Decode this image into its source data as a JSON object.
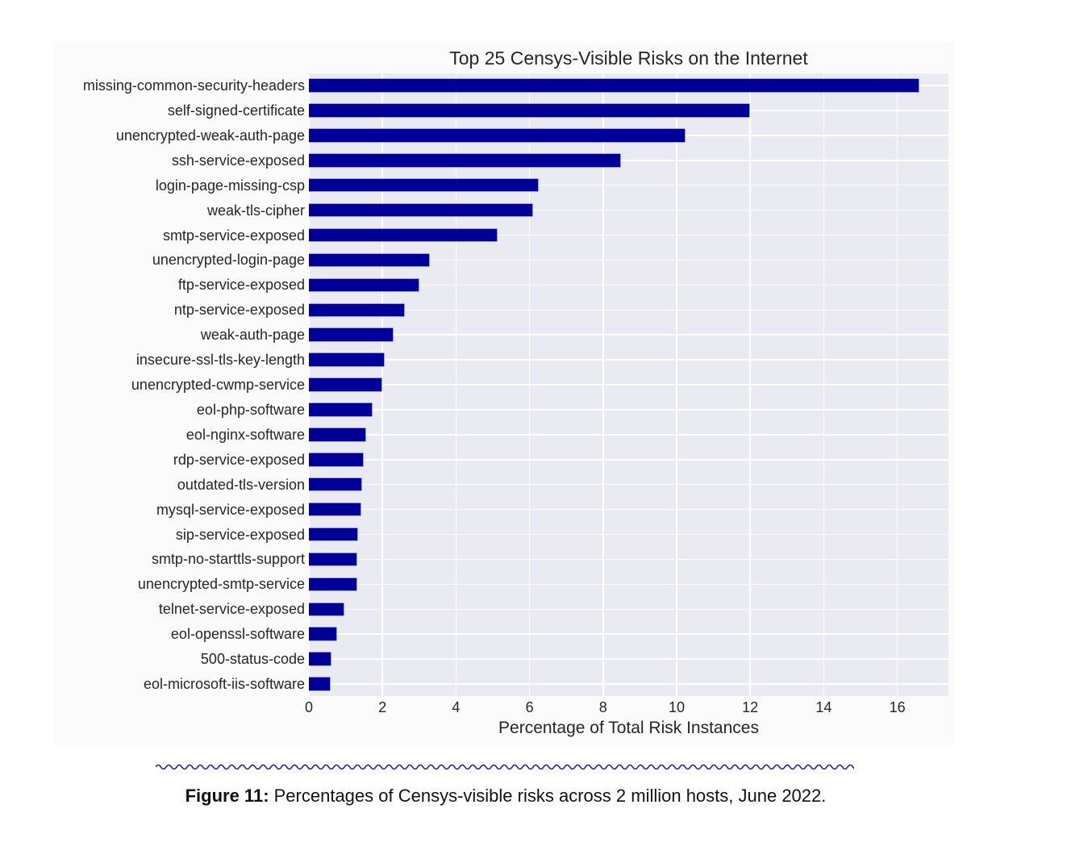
{
  "chart_data": {
    "type": "bar",
    "orientation": "horizontal",
    "title": "Top 25 Censys-Visible Risks on the Internet",
    "xlabel": "Percentage of Total Risk Instances",
    "ylabel": "",
    "xlim": [
      0,
      17.4
    ],
    "xticks": [
      0,
      2,
      4,
      6,
      8,
      10,
      12,
      14,
      16
    ],
    "grid": true,
    "legend": null,
    "bar_color": "#000099",
    "background_color": "#eaeaf2",
    "categories": [
      "missing-common-security-headers",
      "self-signed-certificate",
      "unencrypted-weak-auth-page",
      "ssh-service-exposed",
      "login-page-missing-csp",
      "weak-tls-cipher",
      "smtp-service-exposed",
      "unencrypted-login-page",
      "ftp-service-exposed",
      "ntp-service-exposed",
      "weak-auth-page",
      "insecure-ssl-tls-key-length",
      "unencrypted-cwmp-service",
      "eol-php-software",
      "eol-nginx-software",
      "rdp-service-exposed",
      "outdated-tls-version",
      "mysql-service-exposed",
      "sip-service-exposed",
      "smtp-no-starttls-support",
      "unencrypted-smtp-service",
      "telnet-service-exposed",
      "eol-openssl-software",
      "500-status-code",
      "eol-microsoft-iis-software"
    ],
    "values": [
      16.58,
      11.97,
      10.22,
      8.47,
      6.23,
      6.07,
      5.11,
      3.27,
      2.98,
      2.58,
      2.27,
      2.05,
      1.97,
      1.72,
      1.53,
      1.46,
      1.43,
      1.4,
      1.31,
      1.29,
      1.29,
      0.94,
      0.75,
      0.59,
      0.56
    ]
  },
  "caption": {
    "label": "Figure 11:",
    "text": " Percentages of Censys-visible risks across 2 million hosts, June 2022."
  },
  "divider_color": "#1a1aa6"
}
